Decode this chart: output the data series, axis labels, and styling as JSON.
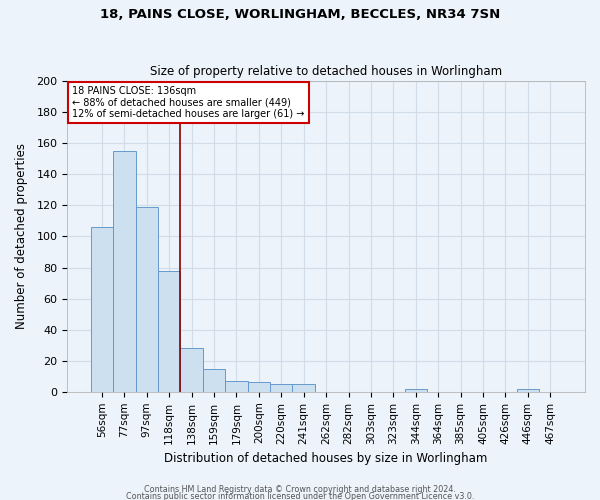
{
  "title1": "18, PAINS CLOSE, WORLINGHAM, BECCLES, NR34 7SN",
  "title2": "Size of property relative to detached houses in Worlingham",
  "xlabel": "Distribution of detached houses by size in Worlingham",
  "ylabel": "Number of detached properties",
  "footer1": "Contains HM Land Registry data © Crown copyright and database right 2024.",
  "footer2": "Contains public sector information licensed under the Open Government Licence v3.0.",
  "categories": [
    "56sqm",
    "77sqm",
    "97sqm",
    "118sqm",
    "138sqm",
    "159sqm",
    "179sqm",
    "200sqm",
    "220sqm",
    "241sqm",
    "262sqm",
    "282sqm",
    "303sqm",
    "323sqm",
    "344sqm",
    "364sqm",
    "385sqm",
    "405sqm",
    "426sqm",
    "446sqm",
    "467sqm"
  ],
  "values": [
    106,
    155,
    119,
    78,
    28,
    15,
    7,
    6,
    5,
    5,
    0,
    0,
    0,
    0,
    2,
    0,
    0,
    0,
    0,
    2,
    0
  ],
  "bar_color": "#cce0f0",
  "bar_edge_color": "#6699cc",
  "grid_color": "#d0dde8",
  "background_color": "#edf3fa",
  "vline_x": 4.0,
  "vline_color": "#8b0000",
  "annotation_line1": "18 PAINS CLOSE: 136sqm",
  "annotation_line2": "← 88% of detached houses are smaller (449)",
  "annotation_line3": "12% of semi-detached houses are larger (61) →",
  "annotation_box_color": "white",
  "annotation_box_edge_color": "#cc0000",
  "ylim": [
    0,
    200
  ],
  "yticks": [
    0,
    20,
    40,
    60,
    80,
    100,
    120,
    140,
    160,
    180,
    200
  ]
}
